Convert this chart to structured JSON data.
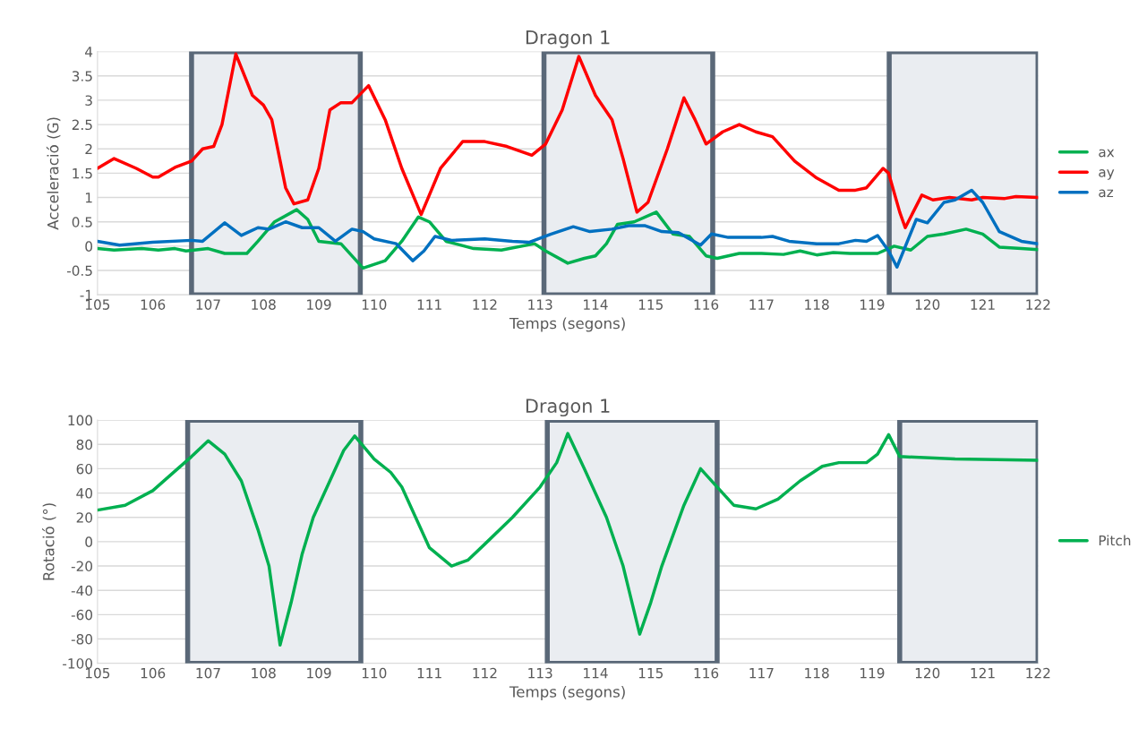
{
  "chart_data": [
    {
      "type": "line",
      "title": "Dragon 1",
      "xlabel": "Temps (segons)",
      "ylabel": "Acceleració (G)",
      "xlim": [
        105,
        122
      ],
      "xticks": [
        105,
        106,
        107,
        108,
        109,
        110,
        111,
        112,
        113,
        114,
        115,
        116,
        117,
        118,
        119,
        120,
        121,
        122
      ],
      "ylim": [
        -1,
        4
      ],
      "yticks": [
        -1,
        -0.5,
        0,
        0.5,
        1,
        1.5,
        2,
        2.5,
        3,
        3.5,
        4
      ],
      "grid": "y",
      "legend": "right",
      "bands": [
        {
          "axis": "x",
          "from": 106.7,
          "to": 109.75,
          "color": "#eaedf1"
        },
        {
          "axis": "x",
          "from": 113.07,
          "to": 116.12,
          "color": "#eaedf1"
        },
        {
          "axis": "x",
          "from": 119.31,
          "to": 122,
          "color": "#eaedf1"
        }
      ],
      "series": [
        {
          "name": "ax",
          "color": "#00b050",
          "x": [
            105,
            105.3,
            105.8,
            106.1,
            106.4,
            106.6,
            107.0,
            107.3,
            107.7,
            107.9,
            108.2,
            108.6,
            108.8,
            109.0,
            109.4,
            109.8,
            110.2,
            110.5,
            110.8,
            111.0,
            111.3,
            111.8,
            112.3,
            112.9,
            113.1,
            113.5,
            113.8,
            114.0,
            114.2,
            114.4,
            114.7,
            115.1,
            115.4,
            115.7,
            116.0,
            116.2,
            116.6,
            117.0,
            117.4,
            117.7,
            118.0,
            118.3,
            118.6,
            119.1,
            119.4,
            119.7,
            120.0,
            120.3,
            120.7,
            121.0,
            121.3,
            121.7,
            122
          ],
          "values": [
            -0.05,
            -0.08,
            -0.05,
            -0.08,
            -0.05,
            -0.1,
            -0.05,
            -0.15,
            -0.15,
            0.1,
            0.5,
            0.75,
            0.55,
            0.1,
            0.05,
            -0.45,
            -0.3,
            0.1,
            0.6,
            0.5,
            0.1,
            -0.05,
            -0.08,
            0.05,
            -0.1,
            -0.35,
            -0.25,
            -0.2,
            0.05,
            0.45,
            0.5,
            0.7,
            0.25,
            0.2,
            -0.2,
            -0.25,
            -0.15,
            -0.15,
            -0.17,
            -0.1,
            -0.18,
            -0.13,
            -0.15,
            -0.15,
            0.0,
            -0.08,
            0.2,
            0.25,
            0.35,
            0.25,
            -0.02,
            -0.05,
            -0.07
          ]
        },
        {
          "name": "ay",
          "color": "#ff0000",
          "x": [
            105,
            105.3,
            105.7,
            106.0,
            106.1,
            106.4,
            106.7,
            106.9,
            107.1,
            107.25,
            107.5,
            107.8,
            108.0,
            108.15,
            108.4,
            108.55,
            108.8,
            109.0,
            109.2,
            109.4,
            109.6,
            109.9,
            110.2,
            110.5,
            110.85,
            111.2,
            111.6,
            112.0,
            112.4,
            112.85,
            113.1,
            113.4,
            113.7,
            114.0,
            114.3,
            114.5,
            114.75,
            114.95,
            115.3,
            115.6,
            115.8,
            116.0,
            116.3,
            116.6,
            116.9,
            117.2,
            117.6,
            118.0,
            118.4,
            118.7,
            118.9,
            119.2,
            119.3,
            119.5,
            119.6,
            119.9,
            120.1,
            120.4,
            120.8,
            121.0,
            121.4,
            121.6,
            122.0
          ],
          "values": [
            1.6,
            1.8,
            1.6,
            1.42,
            1.42,
            1.62,
            1.75,
            2.0,
            2.05,
            2.5,
            3.95,
            3.1,
            2.9,
            2.6,
            1.2,
            0.87,
            0.95,
            1.6,
            2.8,
            2.95,
            2.95,
            3.3,
            2.6,
            1.6,
            0.65,
            1.6,
            2.15,
            2.15,
            2.05,
            1.87,
            2.1,
            2.8,
            3.9,
            3.1,
            2.6,
            1.8,
            0.7,
            0.9,
            2.0,
            3.05,
            2.6,
            2.1,
            2.35,
            2.5,
            2.35,
            2.25,
            1.75,
            1.4,
            1.15,
            1.15,
            1.2,
            1.6,
            1.5,
            0.7,
            0.38,
            1.05,
            0.95,
            1.0,
            0.95,
            1.0,
            0.98,
            1.02,
            1.0
          ]
        },
        {
          "name": "az",
          "color": "#0070c0",
          "x": [
            105,
            105.4,
            106.0,
            106.7,
            106.9,
            107.3,
            107.6,
            107.9,
            108.1,
            108.4,
            108.7,
            109.0,
            109.3,
            109.6,
            109.8,
            110.0,
            110.4,
            110.7,
            110.9,
            111.1,
            111.4,
            112.0,
            112.5,
            112.8,
            113.2,
            113.6,
            113.9,
            114.3,
            114.6,
            114.9,
            115.2,
            115.5,
            115.9,
            116.1,
            116.4,
            117.0,
            117.2,
            117.5,
            118.0,
            118.4,
            118.7,
            118.9,
            119.1,
            119.3,
            119.45,
            119.8,
            120.0,
            120.3,
            120.5,
            120.8,
            121.0,
            121.3,
            121.7,
            122.0
          ],
          "values": [
            0.1,
            0.02,
            0.08,
            0.12,
            0.1,
            0.48,
            0.22,
            0.38,
            0.35,
            0.5,
            0.38,
            0.38,
            0.1,
            0.35,
            0.3,
            0.15,
            0.05,
            -0.3,
            -0.1,
            0.2,
            0.12,
            0.15,
            0.1,
            0.08,
            0.25,
            0.4,
            0.3,
            0.35,
            0.42,
            0.42,
            0.3,
            0.28,
            0.02,
            0.25,
            0.18,
            0.18,
            0.2,
            0.1,
            0.05,
            0.05,
            0.12,
            0.1,
            0.22,
            -0.1,
            -0.43,
            0.55,
            0.48,
            0.9,
            0.95,
            1.15,
            0.9,
            0.3,
            0.1,
            0.05
          ]
        }
      ]
    },
    {
      "type": "line",
      "title": "Dragon 1",
      "xlabel": "Temps (segons)",
      "ylabel": "Rotació (°)",
      "xlim": [
        105,
        122
      ],
      "xticks": [
        105,
        106,
        107,
        108,
        109,
        110,
        111,
        112,
        113,
        114,
        115,
        116,
        117,
        118,
        119,
        120,
        121,
        122
      ],
      "ylim": [
        -100,
        100
      ],
      "yticks": [
        -100,
        -80,
        -60,
        -40,
        -20,
        0,
        20,
        40,
        60,
        80,
        100
      ],
      "grid": "y",
      "legend": "right",
      "bands": [
        {
          "axis": "x",
          "from": 106.63,
          "to": 109.76,
          "color": "#eaedf1"
        },
        {
          "axis": "x",
          "from": 113.13,
          "to": 116.2,
          "color": "#eaedf1"
        },
        {
          "axis": "x",
          "from": 119.5,
          "to": 122,
          "color": "#eaedf1"
        }
      ],
      "series": [
        {
          "name": "Pitch",
          "color": "#00b050",
          "x": [
            105,
            105.5,
            106.0,
            106.4,
            106.7,
            107.0,
            107.3,
            107.6,
            107.9,
            108.1,
            108.3,
            108.5,
            108.7,
            108.9,
            109.2,
            109.45,
            109.65,
            110.0,
            110.3,
            110.5,
            110.8,
            111.0,
            111.4,
            111.7,
            112.0,
            112.5,
            113.0,
            113.3,
            113.5,
            113.8,
            114.2,
            114.5,
            114.8,
            115.0,
            115.2,
            115.6,
            115.9,
            116.2,
            116.5,
            116.9,
            117.3,
            117.7,
            118.1,
            118.4,
            118.9,
            119.1,
            119.3,
            119.5,
            120.5,
            122
          ],
          "values": [
            26,
            30,
            42,
            58,
            70,
            83,
            72,
            50,
            10,
            -20,
            -85,
            -50,
            -10,
            20,
            50,
            75,
            87,
            68,
            57,
            45,
            15,
            -5,
            -20,
            -15,
            -2,
            20,
            45,
            65,
            89,
            60,
            20,
            -20,
            -76,
            -50,
            -20,
            30,
            60,
            45,
            30,
            27,
            35,
            50,
            62,
            65,
            65,
            72,
            88,
            70,
            68,
            67
          ]
        }
      ]
    }
  ]
}
